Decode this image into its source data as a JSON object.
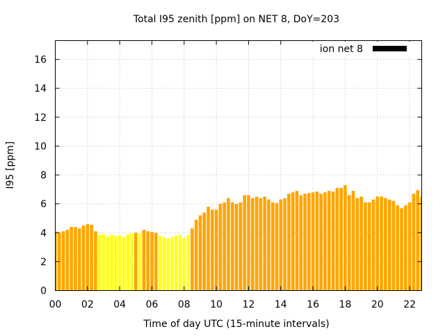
{
  "chart_data": {
    "type": "bar",
    "title": "Total I95 zenith [ppm] on NET 8, DoY=203",
    "xlabel": "Time of day UTC (15-minute intervals)",
    "ylabel": "I95 [ppm]",
    "xlim": [
      0,
      22.75
    ],
    "ylim": [
      0,
      17.3
    ],
    "x_ticks": [
      "00",
      "02",
      "04",
      "06",
      "08",
      "10",
      "12",
      "14",
      "16",
      "18",
      "20",
      "22"
    ],
    "y_ticks": [
      "0",
      "2",
      "4",
      "6",
      "8",
      "10",
      "12",
      "14",
      "16"
    ],
    "grid": true,
    "legend": {
      "label": "ion net 8",
      "color": "#000000",
      "placement": "top-right"
    },
    "bar_width_hours": 0.2,
    "colors": {
      "low": "#ffff22",
      "high": "#ffa500",
      "threshold": 4.0
    },
    "series": [
      {
        "x": [
          0.0,
          0.25,
          0.5,
          0.75,
          1.0,
          1.25,
          1.5,
          1.75,
          2.0,
          2.25,
          2.5,
          2.75,
          3.0,
          3.25,
          3.5,
          3.75,
          4.0,
          4.25,
          4.5,
          4.75,
          5.0,
          5.25,
          5.5,
          5.75,
          6.0,
          6.25,
          6.5,
          6.75,
          7.0,
          7.25,
          7.5,
          7.75,
          8.0,
          8.25,
          8.5,
          8.75,
          9.0,
          9.25,
          9.5,
          9.75,
          10.0,
          10.25,
          10.5,
          10.75,
          11.0,
          11.25,
          11.5,
          11.75,
          12.0,
          12.25,
          12.5,
          12.75,
          13.0,
          13.25,
          13.5,
          13.75,
          14.0,
          14.25,
          14.5,
          14.75,
          15.0,
          15.25,
          15.5,
          15.75,
          16.0,
          16.25,
          16.5,
          16.75,
          17.0,
          17.25,
          17.5,
          17.75,
          18.0,
          18.25,
          18.5,
          18.75,
          19.0,
          19.25,
          19.5,
          19.75,
          20.0,
          20.25,
          20.5,
          20.75,
          21.0,
          21.25,
          21.5,
          21.75,
          22.0,
          22.25,
          22.5,
          22.75
        ],
        "values": [
          4.1,
          4.0,
          4.1,
          4.2,
          4.4,
          4.4,
          4.3,
          4.5,
          4.6,
          4.55,
          4.1,
          3.85,
          3.9,
          3.75,
          3.85,
          3.8,
          3.8,
          3.7,
          3.9,
          3.95,
          4.0,
          3.95,
          4.2,
          4.1,
          4.05,
          4.0,
          3.8,
          3.7,
          3.6,
          3.7,
          3.8,
          3.85,
          3.6,
          3.85,
          4.3,
          4.9,
          5.2,
          5.4,
          5.8,
          5.6,
          5.6,
          6.0,
          6.1,
          6.4,
          6.1,
          6.0,
          6.1,
          6.6,
          6.6,
          6.4,
          6.5,
          6.4,
          6.5,
          6.3,
          6.1,
          6.05,
          6.3,
          6.4,
          6.7,
          6.8,
          6.9,
          6.6,
          6.7,
          6.75,
          6.8,
          6.85,
          6.7,
          6.8,
          6.9,
          6.85,
          7.1,
          7.1,
          7.3,
          6.6,
          6.9,
          6.4,
          6.5,
          6.1,
          6.1,
          6.3,
          6.5,
          6.5,
          6.4,
          6.3,
          6.2,
          5.9,
          5.7,
          5.9,
          6.1,
          6.7,
          6.95,
          6.5
        ]
      }
    ]
  }
}
